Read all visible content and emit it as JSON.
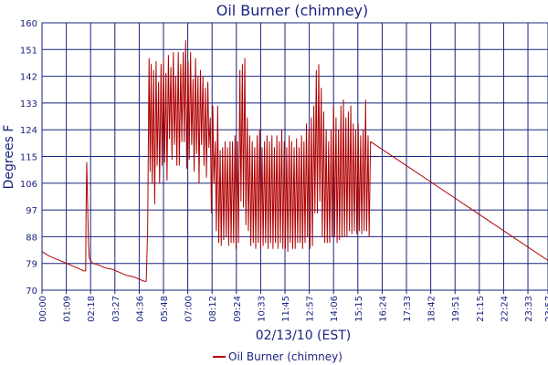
{
  "chart_data": {
    "type": "line",
    "title": "Oil Burner (chimney)",
    "xlabel": "02/13/10 (EST)",
    "ylabel": "Degrees F",
    "ylim": [
      70,
      160
    ],
    "xlim_minutes": [
      0,
      1437
    ],
    "yticks": [
      70,
      79,
      88,
      97,
      106,
      115,
      124,
      133,
      142,
      151,
      160
    ],
    "xticks": [
      {
        "minute": 0,
        "label": "00:00"
      },
      {
        "minute": 69,
        "label": "01:09"
      },
      {
        "minute": 138,
        "label": "02:18"
      },
      {
        "minute": 207,
        "label": "03:27"
      },
      {
        "minute": 276,
        "label": "04:36"
      },
      {
        "minute": 345,
        "label": "05:48"
      },
      {
        "minute": 414,
        "label": "07:00"
      },
      {
        "minute": 483,
        "label": "08:12"
      },
      {
        "minute": 552,
        "label": "09:24"
      },
      {
        "minute": 621,
        "label": "10:33"
      },
      {
        "minute": 690,
        "label": "11:45"
      },
      {
        "minute": 759,
        "label": "12:57"
      },
      {
        "minute": 828,
        "label": "14:06"
      },
      {
        "minute": 897,
        "label": "15:15"
      },
      {
        "minute": 966,
        "label": "16:24"
      },
      {
        "minute": 1035,
        "label": "17:33"
      },
      {
        "minute": 1104,
        "label": "18:42"
      },
      {
        "minute": 1173,
        "label": "19:51"
      },
      {
        "minute": 1242,
        "label": "21:15"
      },
      {
        "minute": 1311,
        "label": "22:24"
      },
      {
        "minute": 1380,
        "label": "23:33"
      },
      {
        "minute": 1437,
        "label": "23:57"
      }
    ],
    "grid": true,
    "legend_position": "bottom",
    "series": [
      {
        "name": "Oil Burner (chimney)",
        "color": "#b00000",
        "points": [
          [
            0,
            83
          ],
          [
            20,
            81.5
          ],
          [
            40,
            80.5
          ],
          [
            60,
            79.5
          ],
          [
            80,
            78.5
          ],
          [
            100,
            77.5
          ],
          [
            118,
            76.5
          ],
          [
            124,
            76.5
          ],
          [
            125,
            95
          ],
          [
            127,
            113
          ],
          [
            130,
            96
          ],
          [
            132,
            86
          ],
          [
            134,
            81
          ],
          [
            137,
            80
          ],
          [
            145,
            79
          ],
          [
            160,
            78.5
          ],
          [
            180,
            77.5
          ],
          [
            200,
            77
          ],
          [
            220,
            76
          ],
          [
            240,
            75
          ],
          [
            260,
            74.5
          ],
          [
            280,
            73.5
          ],
          [
            290,
            73
          ],
          [
            296,
            73
          ],
          [
            300,
            90
          ],
          [
            304,
            148
          ],
          [
            307,
            110
          ],
          [
            310,
            146
          ],
          [
            313,
            106
          ],
          [
            317,
            144
          ],
          [
            320,
            99
          ],
          [
            324,
            147
          ],
          [
            327,
            112
          ],
          [
            331,
            140
          ],
          [
            334,
            106
          ],
          [
            338,
            146
          ],
          [
            341,
            112
          ],
          [
            345,
            148
          ],
          [
            348,
            113
          ],
          [
            352,
            143
          ],
          [
            355,
            107
          ],
          [
            359,
            149
          ],
          [
            362,
            121
          ],
          [
            366,
            145
          ],
          [
            369,
            114
          ],
          [
            373,
            150
          ],
          [
            376,
            119
          ],
          [
            380,
            142
          ],
          [
            383,
            112
          ],
          [
            387,
            150
          ],
          [
            390,
            112
          ],
          [
            394,
            146
          ],
          [
            397,
            120
          ],
          [
            401,
            150
          ],
          [
            404,
            120
          ],
          [
            408,
            154
          ],
          [
            411,
            111
          ],
          [
            415,
            147
          ],
          [
            418,
            114
          ],
          [
            422,
            150
          ],
          [
            425,
            119
          ],
          [
            429,
            141
          ],
          [
            432,
            110
          ],
          [
            436,
            148
          ],
          [
            439,
            116
          ],
          [
            443,
            142
          ],
          [
            446,
            106
          ],
          [
            450,
            144
          ],
          [
            453,
            119
          ],
          [
            457,
            142
          ],
          [
            460,
            112
          ],
          [
            464,
            138
          ],
          [
            467,
            108
          ],
          [
            471,
            140
          ],
          [
            474,
            118
          ],
          [
            478,
            128
          ],
          [
            481,
            96
          ],
          [
            485,
            132
          ],
          [
            488,
            106
          ],
          [
            492,
            120
          ],
          [
            495,
            90
          ],
          [
            499,
            132
          ],
          [
            502,
            86
          ],
          [
            506,
            117
          ],
          [
            509,
            85
          ],
          [
            513,
            118
          ],
          [
            516,
            87
          ],
          [
            520,
            120
          ],
          [
            523,
            88
          ],
          [
            527,
            118
          ],
          [
            530,
            85
          ],
          [
            534,
            120
          ],
          [
            537,
            86
          ],
          [
            541,
            120
          ],
          [
            544,
            86
          ],
          [
            548,
            122
          ],
          [
            551,
            84
          ],
          [
            555,
            120
          ],
          [
            558,
            86
          ],
          [
            562,
            144
          ],
          [
            565,
            100
          ],
          [
            569,
            146
          ],
          [
            572,
            98
          ],
          [
            576,
            148
          ],
          [
            579,
            92
          ],
          [
            583,
            128
          ],
          [
            586,
            90
          ],
          [
            590,
            122
          ],
          [
            593,
            85
          ],
          [
            597,
            120
          ],
          [
            600,
            86
          ],
          [
            604,
            118
          ],
          [
            607,
            84
          ],
          [
            611,
            122
          ],
          [
            614,
            86
          ],
          [
            618,
            124
          ],
          [
            621,
            84
          ],
          [
            625,
            118
          ],
          [
            628,
            85
          ],
          [
            632,
            120
          ],
          [
            635,
            86
          ],
          [
            639,
            122
          ],
          [
            642,
            84
          ],
          [
            646,
            120
          ],
          [
            649,
            86
          ],
          [
            653,
            122
          ],
          [
            656,
            84
          ],
          [
            660,
            118
          ],
          [
            663,
            86
          ],
          [
            667,
            122
          ],
          [
            670,
            84
          ],
          [
            674,
            120
          ],
          [
            677,
            86
          ],
          [
            681,
            124
          ],
          [
            684,
            84
          ],
          [
            688,
            120
          ],
          [
            691,
            84
          ],
          [
            695,
            118
          ],
          [
            698,
            83
          ],
          [
            702,
            122
          ],
          [
            705,
            86
          ],
          [
            709,
            120
          ],
          [
            712,
            84
          ],
          [
            716,
            118
          ],
          [
            719,
            84
          ],
          [
            723,
            121
          ],
          [
            726,
            86
          ],
          [
            730,
            118
          ],
          [
            733,
            86
          ],
          [
            737,
            122
          ],
          [
            740,
            84
          ],
          [
            744,
            120
          ],
          [
            747,
            86
          ],
          [
            751,
            126
          ],
          [
            754,
            88
          ],
          [
            758,
            124
          ],
          [
            761,
            84
          ],
          [
            765,
            128
          ],
          [
            768,
            85
          ],
          [
            772,
            132
          ],
          [
            775,
            96
          ],
          [
            779,
            144
          ],
          [
            782,
            96
          ],
          [
            786,
            146
          ],
          [
            789,
            100
          ],
          [
            793,
            138
          ],
          [
            796,
            88
          ],
          [
            800,
            130
          ],
          [
            803,
            86
          ],
          [
            807,
            124
          ],
          [
            810,
            86
          ],
          [
            814,
            120
          ],
          [
            817,
            86
          ],
          [
            821,
            124
          ],
          [
            824,
            88
          ],
          [
            828,
            132
          ],
          [
            831,
            88
          ],
          [
            835,
            128
          ],
          [
            838,
            86
          ],
          [
            842,
            124
          ],
          [
            845,
            87
          ],
          [
            849,
            132
          ],
          [
            852,
            88
          ],
          [
            856,
            134
          ],
          [
            859,
            88
          ],
          [
            863,
            128
          ],
          [
            866,
            88
          ],
          [
            870,
            130
          ],
          [
            873,
            90
          ],
          [
            877,
            132
          ],
          [
            880,
            89
          ],
          [
            884,
            126
          ],
          [
            887,
            90
          ],
          [
            891,
            124
          ],
          [
            894,
            89
          ],
          [
            898,
            126
          ],
          [
            901,
            90
          ],
          [
            905,
            122
          ],
          [
            908,
            89
          ],
          [
            912,
            124
          ],
          [
            915,
            90
          ],
          [
            919,
            134
          ],
          [
            922,
            90
          ],
          [
            926,
            122
          ],
          [
            929,
            88
          ],
          [
            933,
            120
          ],
          [
            1437,
            80
          ]
        ]
      }
    ]
  },
  "legend": {
    "label": "Oil Burner (chimney)"
  }
}
